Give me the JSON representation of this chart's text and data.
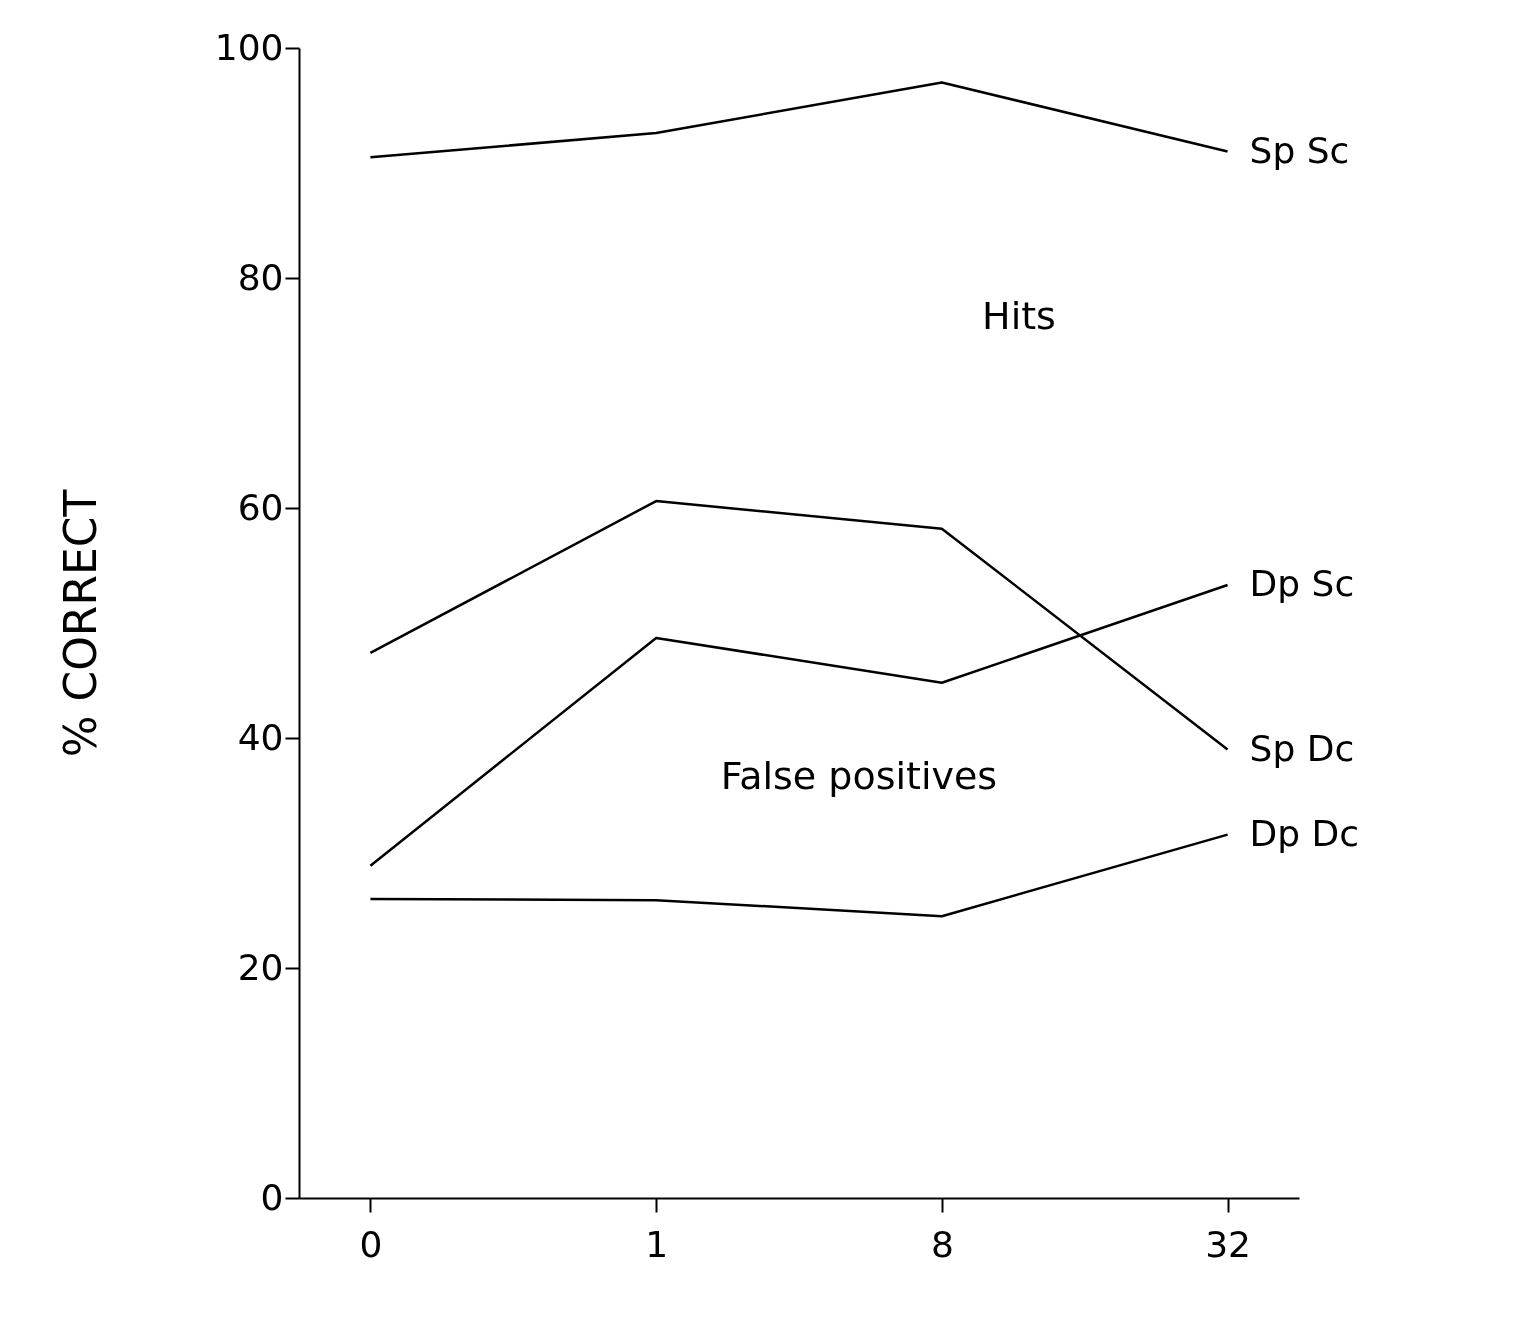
{
  "chart_data": {
    "type": "line",
    "ylabel": "% CORRECT",
    "categories": [
      "0",
      "1",
      "8",
      "32"
    ],
    "ylim": [
      0,
      100
    ],
    "yticks": [
      0,
      20,
      40,
      60,
      80,
      100
    ],
    "grid": false,
    "legend": false,
    "marker": "none",
    "line_style": "solid",
    "annotations": [
      "Hits",
      "False positives"
    ],
    "series": [
      {
        "name": "Sp Sc",
        "color": "#000000",
        "values": [
          90.5,
          92.6,
          97.0,
          91.0
        ]
      },
      {
        "name": "Sp Dc",
        "color": "#000000",
        "values": [
          47.4,
          60.6,
          58.2,
          39.0
        ]
      },
      {
        "name": "Dp Sc",
        "color": "#000000",
        "values": [
          28.9,
          48.7,
          44.8,
          53.3
        ]
      },
      {
        "name": "Dp Dc",
        "color": "#000000",
        "values": [
          26.0,
          25.9,
          24.5,
          31.6
        ]
      }
    ]
  }
}
